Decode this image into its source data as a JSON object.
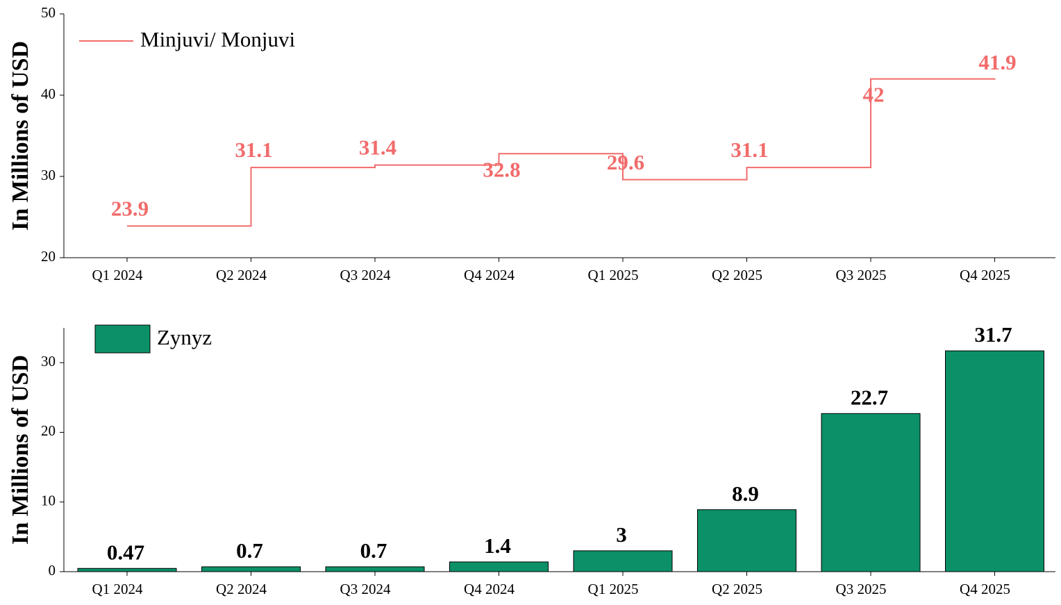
{
  "chart_data": [
    {
      "type": "line",
      "step": true,
      "ylabel": "In Millions of USD",
      "categories": [
        "Q1 2024",
        "Q2 2024",
        "Q3 2024",
        "Q4 2024",
        "Q1 2025",
        "Q2 2025",
        "Q3 2025",
        "Q4 2025"
      ],
      "series": [
        {
          "name": "Minjuvi/ Monjuvi",
          "color": "#f26b6b",
          "values": [
            23.9,
            31.1,
            31.4,
            32.8,
            29.6,
            31.1,
            42,
            41.9
          ]
        }
      ],
      "ylim": [
        20,
        50
      ],
      "yticks": [
        20,
        30,
        40,
        50
      ],
      "legend": "upper left"
    },
    {
      "type": "bar",
      "ylabel": "In Millions of USD",
      "categories": [
        "Q1 2024",
        "Q2 2024",
        "Q3 2024",
        "Q4 2024",
        "Q1 2025",
        "Q2 2025",
        "Q3 2025",
        "Q4 2025"
      ],
      "series": [
        {
          "name": "Zynyz",
          "color": "#0c9068",
          "values": [
            0.47,
            0.7,
            0.7,
            1.4,
            3,
            8.9,
            22.7,
            31.7
          ]
        }
      ],
      "ylim": [
        0,
        35
      ],
      "yticks": [
        0,
        10,
        20,
        30
      ],
      "legend": "upper left"
    }
  ]
}
